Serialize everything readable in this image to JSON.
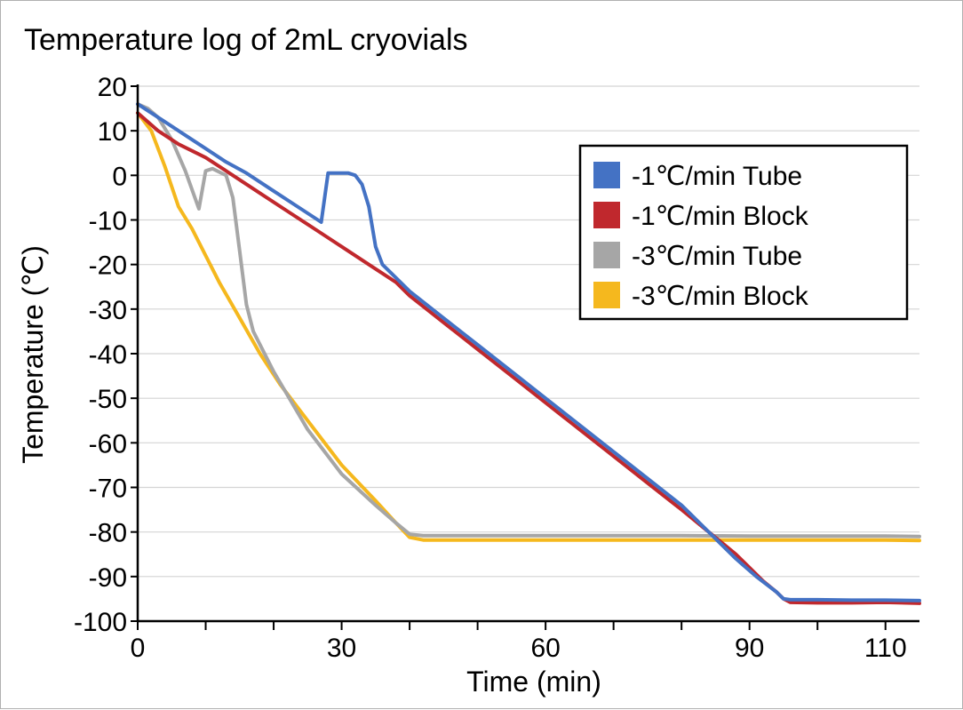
{
  "chart_data": {
    "type": "line",
    "title": "Temperature log of 2mL cryovials",
    "xlabel": "Time (min)",
    "ylabel": "Temperature (℃)",
    "xlim": [
      0,
      115
    ],
    "ylim": [
      -100,
      20
    ],
    "x_ticks": [
      0,
      30,
      60,
      90,
      110
    ],
    "x_minor_ticks": [
      10,
      20,
      40,
      50,
      70,
      80,
      100
    ],
    "y_ticks": [
      20,
      10,
      0,
      -10,
      -20,
      -30,
      -40,
      -50,
      -60,
      -70,
      -80,
      -90,
      -100
    ],
    "grid": "horizontal",
    "legend_position": "top-right",
    "series": [
      {
        "name": "-1℃/min Tube",
        "color": "#4472C4",
        "points": [
          [
            0,
            16
          ],
          [
            2,
            14
          ],
          [
            4,
            12
          ],
          [
            7,
            9
          ],
          [
            10,
            6
          ],
          [
            13,
            3
          ],
          [
            16,
            0.5
          ],
          [
            20,
            -3.5
          ],
          [
            24,
            -7.5
          ],
          [
            27,
            -10.5
          ],
          [
            28,
            0.5
          ],
          [
            31,
            0.5
          ],
          [
            32,
            0
          ],
          [
            33,
            -2
          ],
          [
            34,
            -7
          ],
          [
            35,
            -16
          ],
          [
            36,
            -20
          ],
          [
            38,
            -23
          ],
          [
            40,
            -26
          ],
          [
            45,
            -32
          ],
          [
            50,
            -38
          ],
          [
            55,
            -44
          ],
          [
            60,
            -50
          ],
          [
            65,
            -56
          ],
          [
            70,
            -62
          ],
          [
            75,
            -68
          ],
          [
            80,
            -74
          ],
          [
            85,
            -81.5
          ],
          [
            88,
            -86
          ],
          [
            91,
            -90
          ],
          [
            94,
            -93.5
          ],
          [
            95,
            -95
          ],
          [
            96,
            -95.2
          ],
          [
            100,
            -95.2
          ],
          [
            105,
            -95.3
          ],
          [
            110,
            -95.3
          ],
          [
            115,
            -95.4
          ]
        ]
      },
      {
        "name": "-1℃/min Block",
        "color": "#C0282D",
        "points": [
          [
            0,
            14
          ],
          [
            3,
            10
          ],
          [
            6,
            7
          ],
          [
            10,
            4
          ],
          [
            14,
            0
          ],
          [
            18,
            -4
          ],
          [
            22,
            -8
          ],
          [
            26,
            -12
          ],
          [
            30,
            -16
          ],
          [
            34,
            -20
          ],
          [
            38,
            -24
          ],
          [
            40,
            -27
          ],
          [
            45,
            -33
          ],
          [
            50,
            -39
          ],
          [
            55,
            -45
          ],
          [
            60,
            -51
          ],
          [
            65,
            -57
          ],
          [
            70,
            -63
          ],
          [
            75,
            -69
          ],
          [
            80,
            -75
          ],
          [
            84,
            -80
          ],
          [
            86,
            -82.5
          ],
          [
            88,
            -85
          ],
          [
            90,
            -88
          ],
          [
            92,
            -91
          ],
          [
            94,
            -93.5
          ],
          [
            95,
            -95
          ],
          [
            96,
            -95.8
          ],
          [
            100,
            -95.9
          ],
          [
            105,
            -95.9
          ],
          [
            110,
            -95.8
          ],
          [
            115,
            -96
          ]
        ]
      },
      {
        "name": "-3℃/min Tube",
        "color": "#A6A6A6",
        "points": [
          [
            0,
            16
          ],
          [
            1.5,
            15
          ],
          [
            3,
            13
          ],
          [
            5,
            8
          ],
          [
            7,
            1
          ],
          [
            9,
            -7.5
          ],
          [
            10,
            1
          ],
          [
            11,
            1.5
          ],
          [
            13,
            0
          ],
          [
            14,
            -5
          ],
          [
            15,
            -17
          ],
          [
            16,
            -29
          ],
          [
            17,
            -35
          ],
          [
            20,
            -44
          ],
          [
            25,
            -57
          ],
          [
            30,
            -67
          ],
          [
            35,
            -74
          ],
          [
            38,
            -78
          ],
          [
            40,
            -80.5
          ],
          [
            42,
            -80.8
          ],
          [
            45,
            -80.8
          ],
          [
            50,
            -80.8
          ],
          [
            60,
            -80.8
          ],
          [
            70,
            -80.8
          ],
          [
            80,
            -80.8
          ],
          [
            90,
            -80.9
          ],
          [
            100,
            -80.9
          ],
          [
            110,
            -80.9
          ],
          [
            115,
            -81
          ]
        ]
      },
      {
        "name": "-3℃/min Block",
        "color": "#F5B81E",
        "points": [
          [
            0,
            14
          ],
          [
            2,
            10
          ],
          [
            4,
            2
          ],
          [
            6,
            -7
          ],
          [
            8,
            -12
          ],
          [
            10,
            -18
          ],
          [
            12,
            -24
          ],
          [
            15,
            -32
          ],
          [
            18,
            -40
          ],
          [
            21,
            -47
          ],
          [
            25,
            -55
          ],
          [
            30,
            -65
          ],
          [
            35,
            -73
          ],
          [
            38,
            -78
          ],
          [
            40,
            -81.2
          ],
          [
            42,
            -81.8
          ],
          [
            45,
            -81.8
          ],
          [
            50,
            -81.8
          ],
          [
            60,
            -81.8
          ],
          [
            70,
            -81.8
          ],
          [
            80,
            -81.8
          ],
          [
            90,
            -81.8
          ],
          [
            100,
            -81.8
          ],
          [
            110,
            -81.8
          ],
          [
            115,
            -81.9
          ]
        ]
      }
    ]
  }
}
